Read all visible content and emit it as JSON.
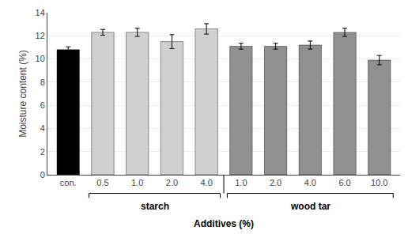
{
  "chart_data": {
    "type": "bar",
    "categories": [
      "con.",
      "0.5",
      "1.0",
      "2.0",
      "4.0",
      "1.0",
      "2.0",
      "4.0",
      "6.0",
      "10.0"
    ],
    "values": [
      10.8,
      12.3,
      12.3,
      11.5,
      12.6,
      11.1,
      11.1,
      11.2,
      12.3,
      9.9
    ],
    "errors": [
      0.25,
      0.25,
      0.35,
      0.6,
      0.45,
      0.25,
      0.25,
      0.35,
      0.35,
      0.4
    ],
    "colors": [
      "#000000",
      "#d0d0d0",
      "#d0d0d0",
      "#d0d0d0",
      "#d0d0d0",
      "#909090",
      "#909090",
      "#909090",
      "#909090",
      "#909090"
    ],
    "ylim": [
      0,
      14
    ],
    "yticks": [
      0,
      2,
      4,
      6,
      8,
      10,
      12,
      14
    ],
    "ylabel": "Moisture content (%)",
    "xlabel": "Additives (%)",
    "groups": [
      {
        "label": "starch",
        "start": 1,
        "end": 4
      },
      {
        "label": "wood tar",
        "start": 5,
        "end": 9
      }
    ],
    "grid": true
  }
}
